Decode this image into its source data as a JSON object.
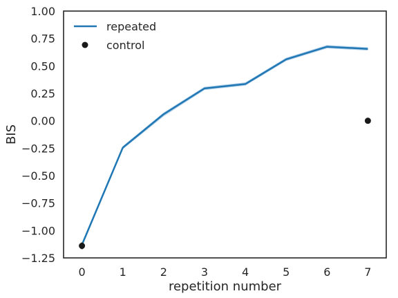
{
  "chart_data": {
    "type": "line",
    "title": "",
    "xlabel": "repetition number",
    "ylabel": "BIS",
    "xlim": [
      -0.45,
      7.45
    ],
    "ylim": [
      -1.25,
      1.0
    ],
    "xticks": [
      0,
      1,
      2,
      3,
      4,
      5,
      6,
      7
    ],
    "yticks": [
      1.0,
      0.75,
      0.5,
      0.25,
      0.0,
      -0.25,
      -0.5,
      -0.75,
      -1.0,
      -1.25
    ],
    "ytick_labels": [
      "1.00",
      "0.75",
      "0.50",
      "0.25",
      "0.00",
      "−0.25",
      "−0.50",
      "−0.75",
      "−1.00",
      "−1.25"
    ],
    "grid": false,
    "legend_position": "top-left",
    "series": [
      {
        "name": "repeated",
        "kind": "line",
        "color": "#1f77b4",
        "band_color": "#9ec3e4",
        "x": [
          0,
          1,
          2,
          3,
          4,
          5,
          6,
          7
        ],
        "y": [
          -1.13,
          -0.245,
          0.06,
          0.295,
          0.335,
          0.56,
          0.675,
          0.655
        ],
        "y_lower": [
          -1.15,
          -0.26,
          0.04,
          0.28,
          0.32,
          0.545,
          0.66,
          0.64
        ],
        "y_upper": [
          -1.11,
          -0.23,
          0.075,
          0.31,
          0.35,
          0.575,
          0.69,
          0.67
        ]
      },
      {
        "name": "control",
        "kind": "points",
        "color": "#1a1a1a",
        "x": [
          0,
          7
        ],
        "y": [
          -1.14,
          0.0
        ],
        "err": [
          0.03,
          0.025
        ]
      }
    ]
  }
}
